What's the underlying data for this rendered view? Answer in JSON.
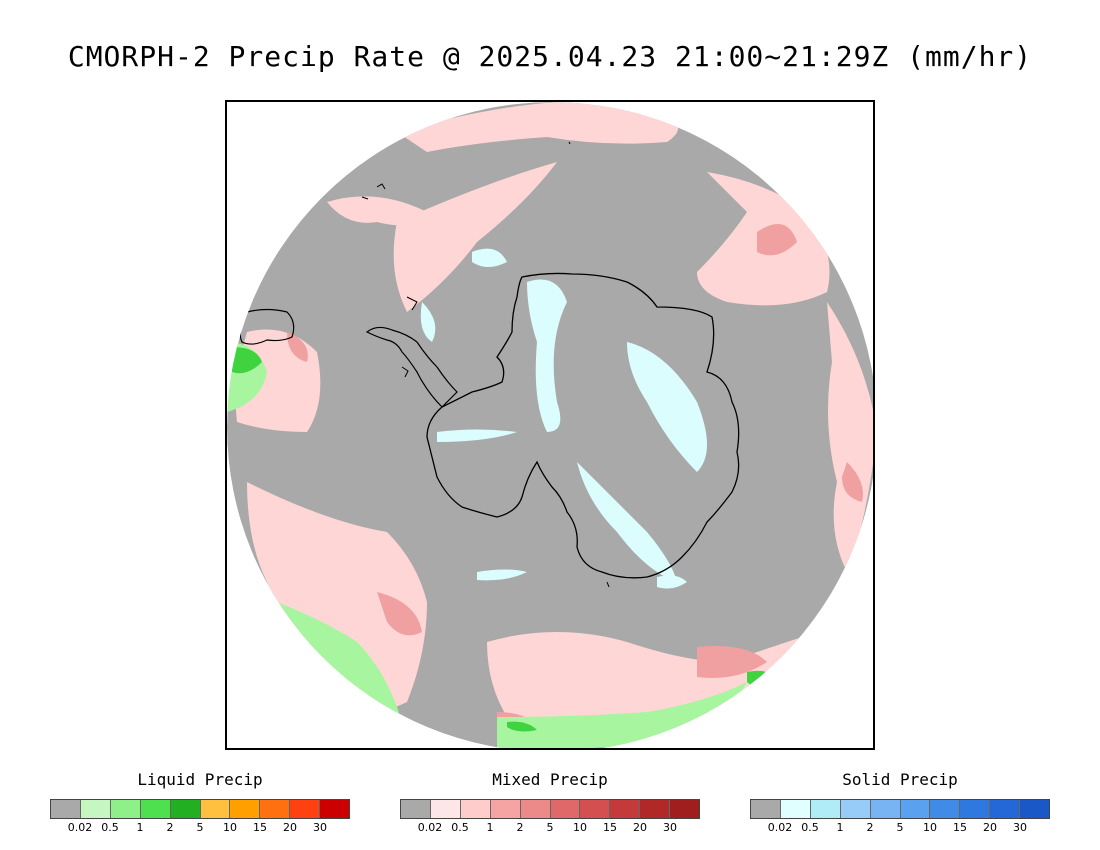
{
  "title": "CMORPH-2 Precip Rate @ 2025.04.23 21:00~21:29Z (mm/hr)",
  "map": {
    "projection": "south polar stereographic",
    "background_color": "#a9a9a9",
    "ocean_frame_color": "#ffffff"
  },
  "legends": [
    {
      "title": "Liquid Precip",
      "colors": [
        "#a9a9a9",
        "#c6f7c0",
        "#8ff08a",
        "#4fe04f",
        "#22b022",
        "#ffc040",
        "#ffa000",
        "#ff7010",
        "#ff4010",
        "#cc0000"
      ],
      "ticks": [
        "0.02",
        "0.5",
        "1",
        "2",
        "5",
        "10",
        "15",
        "20",
        "30"
      ]
    },
    {
      "title": "Mixed Precip",
      "colors": [
        "#a9a9a9",
        "#ffe6e6",
        "#ffcccc",
        "#f5a3a3",
        "#ec8a8a",
        "#e06868",
        "#d45050",
        "#c43a3a",
        "#b02828",
        "#a01e1e"
      ],
      "ticks": [
        "0.02",
        "0.5",
        "1",
        "2",
        "5",
        "10",
        "15",
        "20",
        "30"
      ]
    },
    {
      "title": "Solid Precip",
      "colors": [
        "#a9a9a9",
        "#e0ffff",
        "#b0ecf8",
        "#98ccf8",
        "#78b4f4",
        "#5aa2f0",
        "#408ae8",
        "#2e78e0",
        "#2468d8",
        "#1a58c8"
      ],
      "ticks": [
        "0.02",
        "0.5",
        "1",
        "2",
        "5",
        "10",
        "15",
        "20",
        "30"
      ]
    }
  ]
}
